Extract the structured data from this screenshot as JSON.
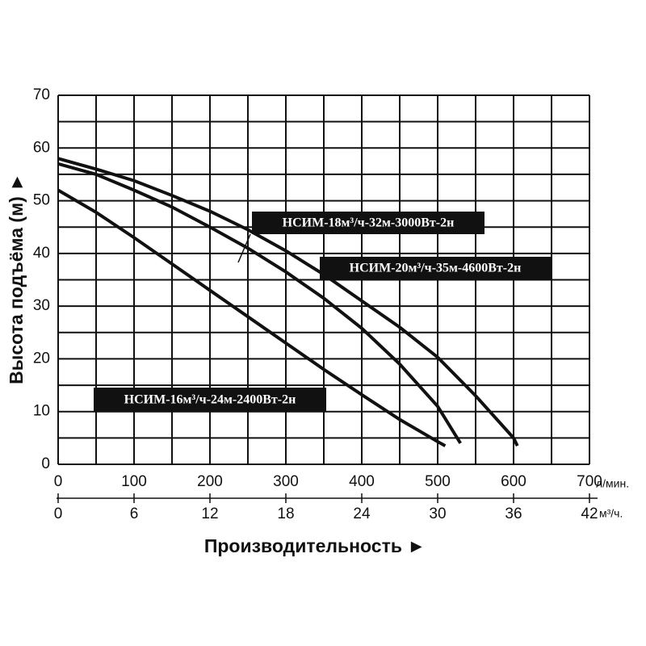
{
  "chart_data": {
    "type": "line",
    "x_label": "Производительность ►",
    "y_label": "Высота подъёма (м) ►",
    "x_unit": "л/мин.",
    "x2_unit": "м³/ч.",
    "xlim": [
      0,
      700
    ],
    "xticks": [
      0,
      100,
      200,
      300,
      400,
      500,
      600,
      700
    ],
    "x2lim": [
      0,
      42
    ],
    "x2ticks": [
      0,
      6,
      12,
      18,
      24,
      30,
      36,
      42
    ],
    "xgrid": [
      0,
      50,
      100,
      150,
      200,
      250,
      300,
      350,
      400,
      450,
      500,
      550,
      600,
      650,
      700
    ],
    "ylim": [
      0,
      70
    ],
    "yticks": [
      0,
      10,
      20,
      30,
      40,
      50,
      60,
      70
    ],
    "ygrid": [
      0,
      5,
      10,
      15,
      20,
      25,
      30,
      35,
      40,
      45,
      50,
      55,
      60,
      65,
      70
    ],
    "grid": true,
    "series": [
      {
        "name": "НСИМ-16м³/ч-24м-2400Вт-2н",
        "color": "#111111",
        "x": [
          0,
          50,
          100,
          150,
          200,
          250,
          300,
          350,
          400,
          450,
          500,
          510
        ],
        "values": [
          52,
          47.8,
          43,
          38,
          33,
          28,
          23,
          18,
          13.2,
          8.5,
          4.3,
          3.5
        ]
      },
      {
        "name": "НСИМ-18м³/ч-32м-3000Вт-2н",
        "color": "#111111",
        "x": [
          0,
          50,
          100,
          150,
          200,
          250,
          300,
          350,
          400,
          450,
          500,
          530
        ],
        "values": [
          57,
          55,
          52,
          48.8,
          45,
          41,
          36.5,
          31.5,
          25.8,
          19,
          11,
          4
        ]
      },
      {
        "name": "НСИМ-20м³/ч-35м-4600Вт-2н",
        "color": "#111111",
        "x": [
          0,
          50,
          100,
          150,
          200,
          250,
          300,
          350,
          400,
          450,
          500,
          550,
          600,
          605
        ],
        "values": [
          58,
          56,
          53.8,
          51,
          48,
          44.5,
          40.5,
          36,
          31,
          26,
          20.3,
          13,
          5,
          3.5
        ]
      }
    ]
  }
}
